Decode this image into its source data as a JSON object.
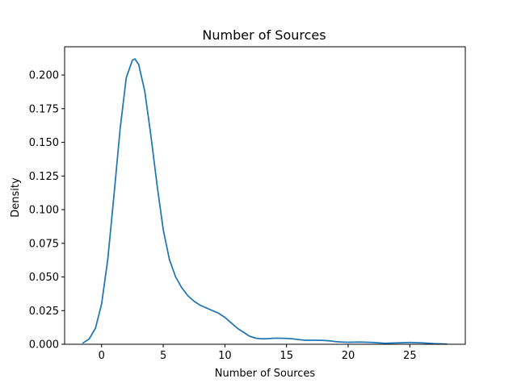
{
  "chart_data": {
    "type": "line",
    "title": "Number of Sources",
    "xlabel": "Number of Sources",
    "ylabel": "Density",
    "xlim": [
      -3,
      29.5
    ],
    "ylim": [
      0,
      0.221
    ],
    "x_ticks": [
      0,
      5,
      10,
      15,
      20,
      25
    ],
    "x_tick_labels": [
      "0",
      "5",
      "10",
      "15",
      "20",
      "25"
    ],
    "y_ticks": [
      0,
      0.025,
      0.05,
      0.075,
      0.1,
      0.125,
      0.15,
      0.175,
      0.2
    ],
    "y_tick_labels": [
      "0.000",
      "0.025",
      "0.050",
      "0.075",
      "0.100",
      "0.125",
      "0.150",
      "0.175",
      "0.200"
    ],
    "grid": false,
    "series": [
      {
        "color": "#1f77b4",
        "x": [
          -1.5,
          -1.0,
          -0.5,
          0.0,
          0.5,
          1.0,
          1.5,
          2.0,
          2.5,
          2.7,
          3.0,
          3.5,
          4.0,
          4.5,
          5.0,
          5.5,
          6.0,
          6.5,
          7.0,
          7.5,
          8.0,
          8.5,
          9.0,
          9.5,
          10.0,
          10.5,
          11.0,
          11.5,
          12.0,
          12.5,
          13.0,
          13.5,
          14.0,
          14.5,
          15.0,
          15.5,
          16.0,
          16.5,
          17.0,
          17.5,
          18.0,
          18.5,
          19.0,
          19.5,
          20.0,
          21.0,
          22.0,
          23.0,
          24.0,
          25.0,
          26.0,
          27.0,
          28.0
        ],
        "y": [
          0.001,
          0.004,
          0.012,
          0.03,
          0.063,
          0.11,
          0.16,
          0.198,
          0.211,
          0.212,
          0.208,
          0.188,
          0.155,
          0.118,
          0.085,
          0.063,
          0.05,
          0.042,
          0.036,
          0.032,
          0.029,
          0.027,
          0.025,
          0.023,
          0.02,
          0.016,
          0.012,
          0.009,
          0.006,
          0.0045,
          0.004,
          0.0042,
          0.0045,
          0.0045,
          0.0043,
          0.004,
          0.0035,
          0.003,
          0.003,
          0.003,
          0.0028,
          0.0025,
          0.002,
          0.0017,
          0.0015,
          0.0016,
          0.0013,
          0.0008,
          0.001,
          0.0014,
          0.001,
          0.0004,
          0.0001
        ]
      }
    ]
  }
}
